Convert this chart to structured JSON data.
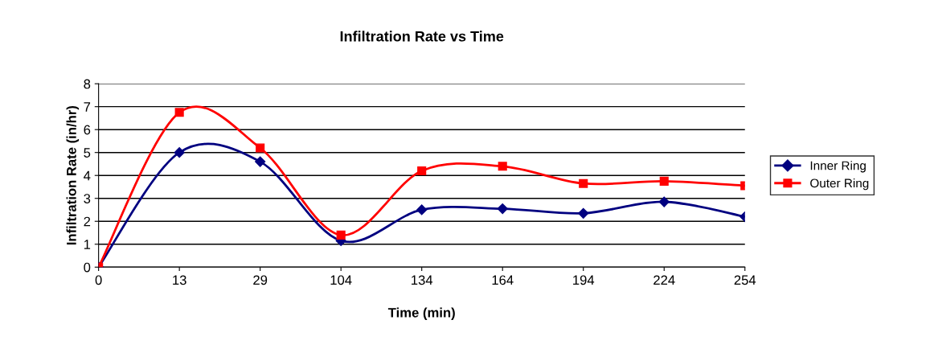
{
  "chart_data": {
    "type": "line",
    "title": "Infiltration Rate vs Time",
    "xlabel": "Time (min)",
    "ylabel": "Infiltration Rate (in/hr)",
    "categories": [
      "0",
      "13",
      "29",
      "104",
      "134",
      "164",
      "194",
      "224",
      "254"
    ],
    "series": [
      {
        "name": "Inner Ring",
        "color": "#000080",
        "marker": "diamond",
        "values": [
          0,
          5.0,
          4.6,
          1.15,
          2.5,
          2.55,
          2.35,
          2.85,
          2.2
        ]
      },
      {
        "name": "Outer Ring",
        "color": "#ff0000",
        "marker": "square",
        "values": [
          0,
          6.75,
          5.2,
          1.4,
          4.2,
          4.4,
          3.65,
          3.75,
          3.55
        ]
      }
    ],
    "ylim": [
      0,
      8
    ],
    "yticks": [
      0,
      1,
      2,
      3,
      4,
      5,
      6,
      7,
      8
    ],
    "grid": "y",
    "legend": "right",
    "line_style": "solid"
  }
}
